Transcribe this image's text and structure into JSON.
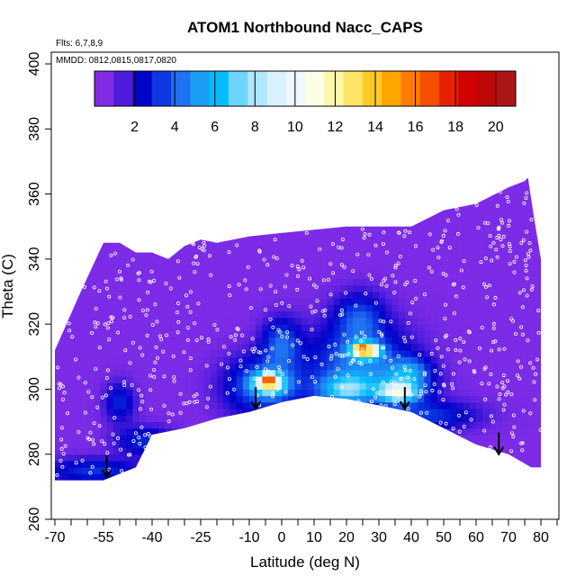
{
  "chart_data": {
    "type": "heatmap",
    "title": "ATOM1 Northbound Nacc_CAPS",
    "subtitle_flights": "Flts: 6,7,8,9",
    "subtitle_dates": "MMDD: 0812,0815,0817,0820",
    "xlabel": "Latitude (deg N)",
    "ylabel": "Theta (C)",
    "xlim": [
      -70,
      85
    ],
    "ylim": [
      260,
      405
    ],
    "x_ticks": [
      -70,
      -55,
      -40,
      -25,
      -10,
      0,
      10,
      20,
      30,
      40,
      50,
      60,
      70,
      80
    ],
    "x_tick_labels": [
      "-70",
      "-55",
      "-40",
      "-25",
      "-10",
      "0",
      "10",
      "20",
      "30",
      "40",
      "50",
      "60",
      "70",
      "80"
    ],
    "y_ticks": [
      260,
      280,
      300,
      320,
      340,
      360,
      380,
      400
    ],
    "y_tick_labels": [
      "260",
      "280",
      "300",
      "320",
      "340",
      "360",
      "380",
      "400"
    ],
    "colorbar": {
      "range": [
        0,
        21
      ],
      "ticks": [
        2,
        4,
        6,
        8,
        10,
        12,
        14,
        16,
        18,
        20
      ],
      "tick_labels": [
        "2",
        "4",
        "6",
        "8",
        "10",
        "12",
        "14",
        "16",
        "18",
        "20"
      ]
    },
    "background_value": 1,
    "domain_top": [
      [
        -70,
        312
      ],
      [
        -62,
        330
      ],
      [
        -55,
        345
      ],
      [
        -50,
        345
      ],
      [
        -45,
        342
      ],
      [
        -40,
        342
      ],
      [
        -35,
        340
      ],
      [
        -30,
        344
      ],
      [
        -25,
        346
      ],
      [
        -20,
        345
      ],
      [
        -10,
        347
      ],
      [
        0,
        348
      ],
      [
        10,
        349
      ],
      [
        20,
        350
      ],
      [
        30,
        350
      ],
      [
        40,
        350
      ],
      [
        50,
        355
      ],
      [
        60,
        357
      ],
      [
        70,
        362
      ],
      [
        75,
        364
      ],
      [
        76,
        365
      ],
      [
        78,
        352
      ],
      [
        80,
        340
      ],
      [
        80,
        310
      ]
    ],
    "domain_bottom": [
      [
        80,
        276
      ],
      [
        77,
        276
      ],
      [
        70,
        280
      ],
      [
        60,
        283
      ],
      [
        50,
        288
      ],
      [
        40,
        293
      ],
      [
        30,
        295
      ],
      [
        20,
        297
      ],
      [
        10,
        298
      ],
      [
        0,
        296
      ],
      [
        -10,
        293
      ],
      [
        -20,
        291
      ],
      [
        -30,
        288
      ],
      [
        -40,
        286
      ],
      [
        -45,
        276
      ],
      [
        -55,
        272
      ],
      [
        -70,
        272
      ]
    ],
    "anomalies": [
      {
        "name": "south-dark-pocket",
        "x": -50,
        "y": 296,
        "sx": 3,
        "sy": 4,
        "value": 2
      },
      {
        "name": "south-floor-band",
        "x": -58,
        "y": 275,
        "sx": 10,
        "sy": 2.5,
        "value": 2.2
      },
      {
        "name": "west-floor-band",
        "x": -42,
        "y": 284,
        "sx": 6,
        "sy": 3,
        "value": 2.1
      },
      {
        "name": "plume-a-outer",
        "x": -5,
        "y": 301,
        "sx": 8,
        "sy": 6,
        "value": 3.5
      },
      {
        "name": "plume-a-core",
        "x": -4,
        "y": 302,
        "sx": 3.5,
        "sy": 2.2,
        "value": 8
      },
      {
        "name": "plume-a-peak",
        "x": -4,
        "y": 303,
        "sx": 1.2,
        "sy": 1.2,
        "value": 7
      },
      {
        "name": "plume-a-arm",
        "x": 0,
        "y": 314,
        "sx": 4,
        "sy": 5,
        "value": 3
      },
      {
        "name": "plume-b-outer",
        "x": 24,
        "y": 308,
        "sx": 10,
        "sy": 8,
        "value": 3.5
      },
      {
        "name": "plume-b-core",
        "x": 26,
        "y": 312,
        "sx": 3,
        "sy": 1.6,
        "value": 11
      },
      {
        "name": "plume-b-peak",
        "x": 24,
        "y": 313,
        "sx": 1,
        "sy": 1,
        "value": 5
      },
      {
        "name": "plume-b-mid",
        "x": 20,
        "y": 300,
        "sx": 6,
        "sy": 3,
        "value": 5
      },
      {
        "name": "plume-b-tower",
        "x": 24,
        "y": 322,
        "sx": 5,
        "sy": 5,
        "value": 2.5
      },
      {
        "name": "plume-c",
        "x": 36,
        "y": 299,
        "sx": 4,
        "sy": 2,
        "value": 7
      },
      {
        "name": "plume-c-halo",
        "x": 38,
        "y": 302,
        "sx": 6,
        "sy": 4,
        "value": 3
      },
      {
        "name": "east-floor-band",
        "x": 45,
        "y": 292,
        "sx": 10,
        "sy": 3,
        "value": 2.3
      },
      {
        "name": "east-mid-pocket",
        "x": 40,
        "y": 306,
        "sx": 4,
        "sy": 3,
        "value": 2.2
      }
    ],
    "arrows": [
      {
        "x": -54,
        "y_tip": 273
      },
      {
        "x": -8,
        "y_tip": 294
      },
      {
        "x": 38,
        "y_tip": 294
      },
      {
        "x": 67,
        "y_tip": 280
      }
    ],
    "sample_count": 620
  }
}
